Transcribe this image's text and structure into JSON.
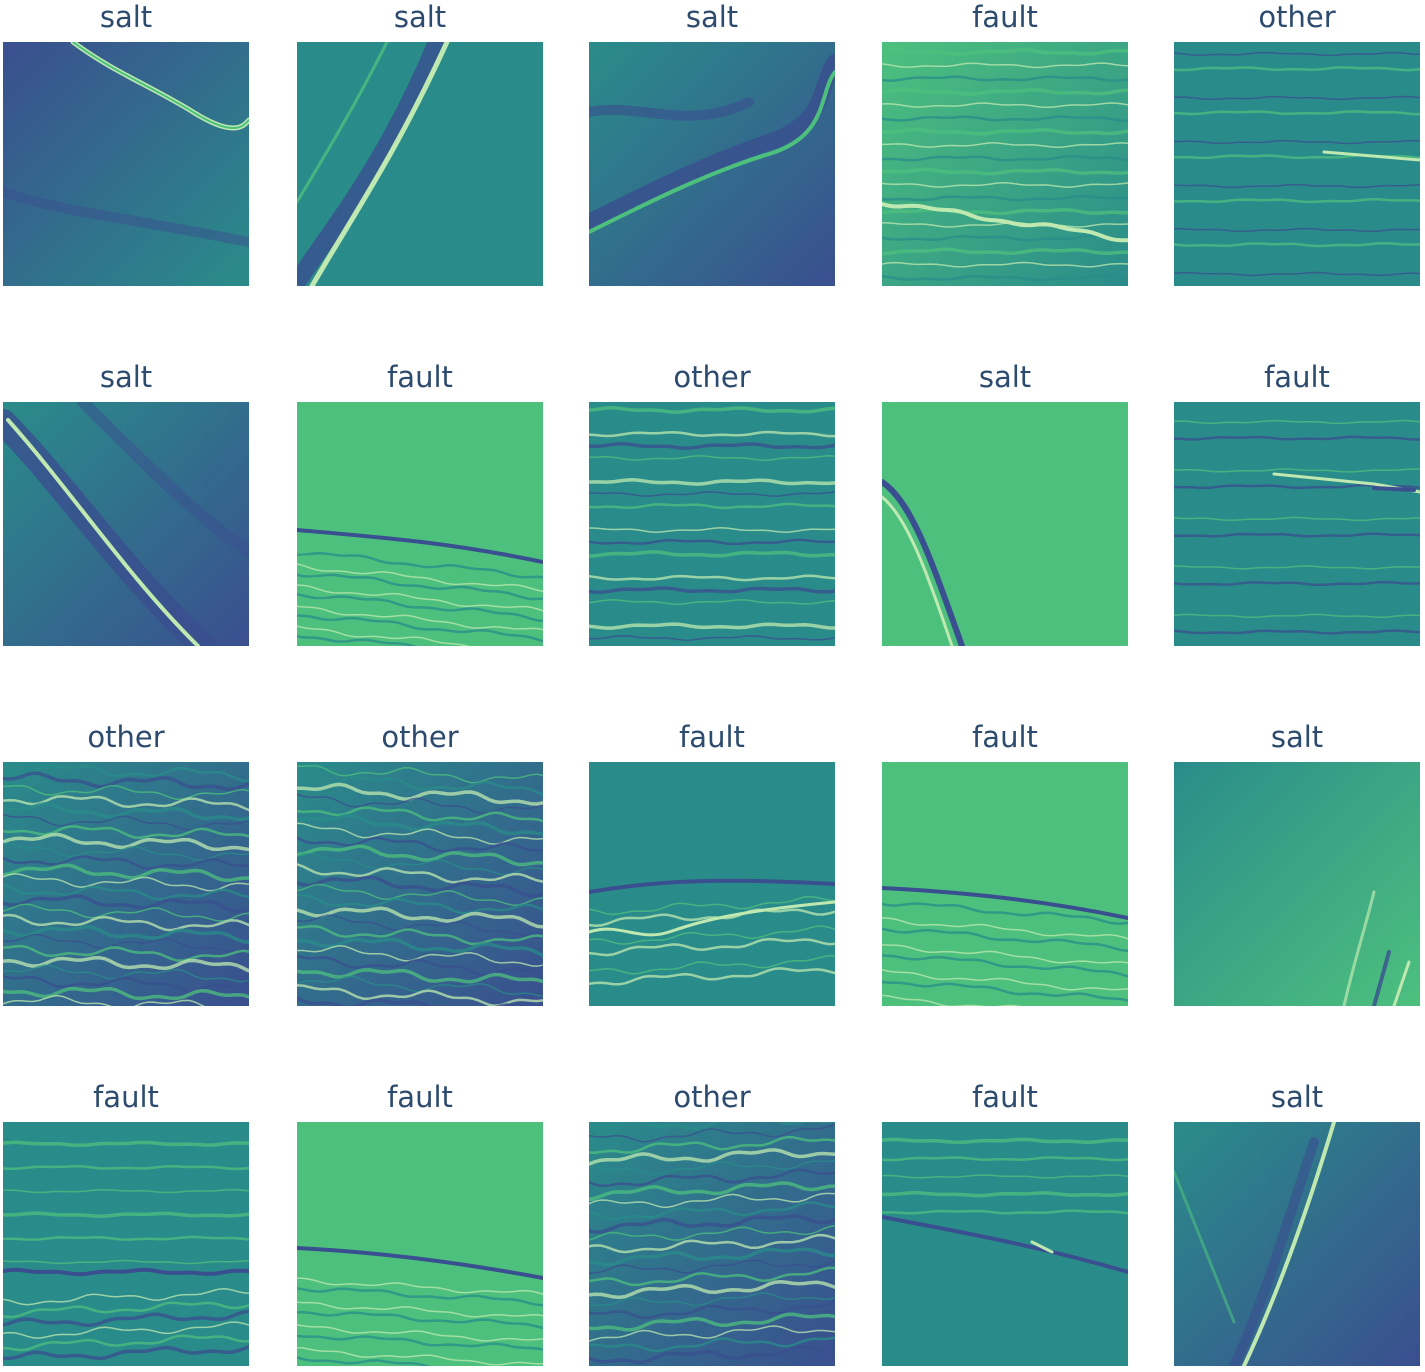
{
  "tiles": [
    {
      "label": "salt",
      "kind": "salt-diag-top"
    },
    {
      "label": "salt",
      "kind": "salt-diag-up"
    },
    {
      "label": "salt",
      "kind": "salt-wavy"
    },
    {
      "label": "fault",
      "kind": "fault-flat"
    },
    {
      "label": "other",
      "kind": "other-flat"
    },
    {
      "label": "salt",
      "kind": "salt-diag-down"
    },
    {
      "label": "fault",
      "kind": "fault-mid"
    },
    {
      "label": "other",
      "kind": "other-layers"
    },
    {
      "label": "salt",
      "kind": "salt-corner"
    },
    {
      "label": "fault",
      "kind": "fault-thin"
    },
    {
      "label": "other",
      "kind": "other-dense"
    },
    {
      "label": "other",
      "kind": "other-dense2"
    },
    {
      "label": "fault",
      "kind": "fault-kink"
    },
    {
      "label": "fault",
      "kind": "fault-mid2"
    },
    {
      "label": "salt",
      "kind": "salt-plain"
    },
    {
      "label": "fault",
      "kind": "fault-low"
    },
    {
      "label": "fault",
      "kind": "fault-low2"
    },
    {
      "label": "other",
      "kind": "other-dense3"
    },
    {
      "label": "fault",
      "kind": "fault-dip"
    },
    {
      "label": "salt",
      "kind": "salt-streak"
    }
  ],
  "colors": {
    "dark": "#3a4f8f",
    "mid": "#2a8c8a",
    "light": "#4dc07e",
    "pale": "#bfe9b0",
    "label": "#2d4b6e"
  }
}
